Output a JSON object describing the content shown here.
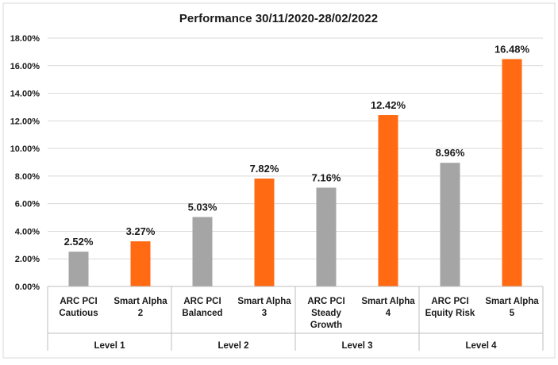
{
  "chart_data": {
    "type": "bar",
    "title": "Performance 30/11/2020-28/02/2022",
    "ylim": [
      0,
      18
    ],
    "ytick_step": 2,
    "ytick_labels": [
      "0.00%",
      "2.00%",
      "4.00%",
      "6.00%",
      "8.00%",
      "10.00%",
      "12.00%",
      "14.00%",
      "16.00%",
      "18.00%"
    ],
    "grid": true,
    "legend": "none",
    "colors": {
      "arc": "#a5a5a5",
      "smart": "#ff6a13"
    },
    "categories": [
      {
        "label_lines": [
          "ARC PCI",
          "Cautious"
        ],
        "value": 2.52,
        "label": "2.52%",
        "series": "arc"
      },
      {
        "label_lines": [
          "Smart Alpha",
          "2"
        ],
        "value": 3.27,
        "label": "3.27%",
        "series": "smart"
      },
      {
        "label_lines": [
          "ARC PCI",
          "Balanced"
        ],
        "value": 5.03,
        "label": "5.03%",
        "series": "arc"
      },
      {
        "label_lines": [
          "Smart Alpha",
          "3"
        ],
        "value": 7.82,
        "label": "7.82%",
        "series": "smart"
      },
      {
        "label_lines": [
          "ARC PCI",
          "Steady",
          "Growth"
        ],
        "value": 7.16,
        "label": "7.16%",
        "series": "arc"
      },
      {
        "label_lines": [
          "Smart Alpha",
          "4"
        ],
        "value": 12.42,
        "label": "12.42%",
        "series": "smart"
      },
      {
        "label_lines": [
          "ARC PCI",
          "Equity Risk"
        ],
        "value": 8.96,
        "label": "8.96%",
        "series": "arc"
      },
      {
        "label_lines": [
          "Smart Alpha",
          "5"
        ],
        "value": 16.48,
        "label": "16.48%",
        "series": "smart"
      }
    ],
    "groups": [
      "Level 1",
      "Level 2",
      "Level 3",
      "Level 4"
    ]
  }
}
